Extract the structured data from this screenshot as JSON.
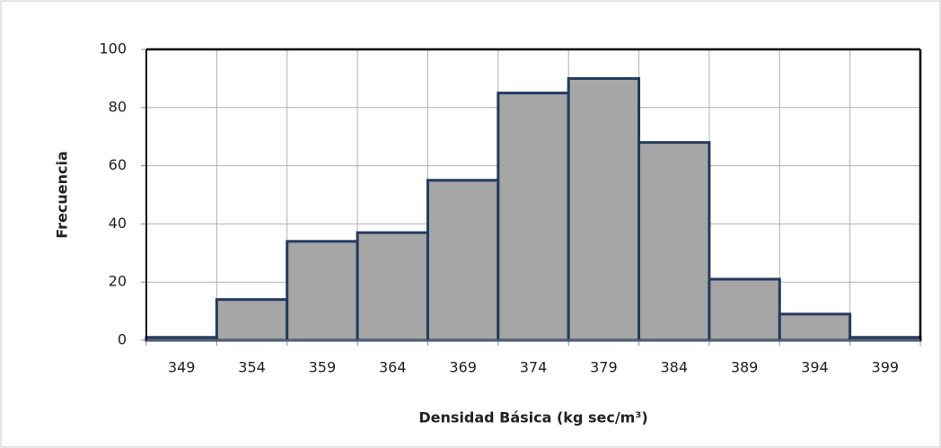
{
  "chart_data": {
    "type": "bar",
    "x_label": "Densidad Básica (kg sec/m³)",
    "y_label": "Frecuencia",
    "categories": [
      "349",
      "354",
      "359",
      "364",
      "369",
      "374",
      "379",
      "384",
      "389",
      "394",
      "399"
    ],
    "values": [
      1,
      14,
      34,
      37,
      55,
      85,
      90,
      68,
      21,
      9,
      1
    ],
    "color": "#a6a6a6",
    "edge_color": "#243a5e",
    "ylim": [
      0,
      100
    ],
    "yticks": [
      0,
      20,
      40,
      60,
      80,
      100
    ],
    "grid": true
  }
}
